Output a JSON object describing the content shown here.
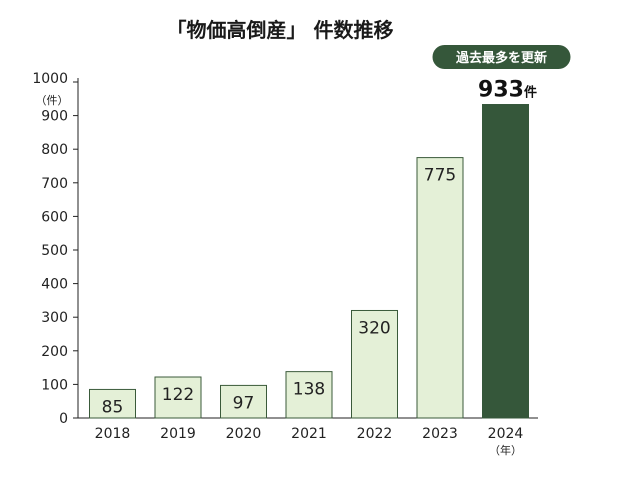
{
  "colors": {
    "bar_fill": "#e4f0d7",
    "bar_stroke": "#3a5a3a",
    "highlight_fill": "#35573a",
    "badge_fill": "#35573a",
    "badge_text": "#ffffff",
    "axis": "#222222"
  },
  "chart_data": {
    "type": "bar",
    "title": "「物価高倒産」 件数推移",
    "categories": [
      "2018",
      "2019",
      "2020",
      "2021",
      "2022",
      "2023",
      "2024"
    ],
    "values": [
      85,
      122,
      97,
      138,
      320,
      775,
      933
    ],
    "value_labels": [
      "85",
      "122",
      "97",
      "138",
      "320",
      "775",
      "933"
    ],
    "highlight_index": 6,
    "highlight_value_suffix": "件",
    "badge": "過去最多を更新",
    "ylim": [
      0,
      1000
    ],
    "yticks": [
      0,
      100,
      200,
      300,
      400,
      500,
      600,
      700,
      800,
      900,
      1000
    ],
    "ytick_labels": [
      "0",
      "100",
      "200",
      "300",
      "400",
      "500",
      "600",
      "700",
      "800",
      "900",
      "1000"
    ],
    "y_unit": "（件）",
    "x_unit": "（年）",
    "grid": false
  }
}
